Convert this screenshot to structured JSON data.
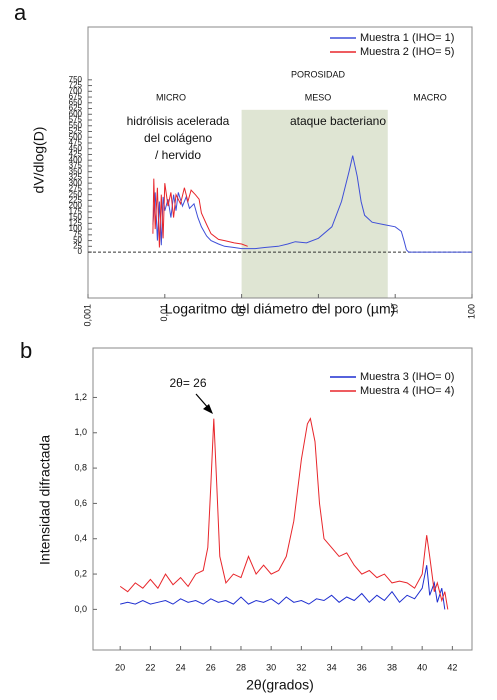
{
  "chart_data": [
    {
      "type": "line",
      "panel_label": "a",
      "xlog": true,
      "xlabel": "Logaritmo del diámetro del poro (µm)",
      "ylabel": "dV/dlog(D)",
      "xlim": [
        0.001,
        100
      ],
      "ylim": [
        -200,
        980
      ],
      "xticks": [
        {
          "value": 0.001,
          "label": "0,001"
        },
        {
          "value": 0.01,
          "label": "0,01"
        },
        {
          "value": 0.1,
          "label": "0,1"
        },
        1,
        10,
        100
      ],
      "yticks": [
        0,
        25,
        50,
        75,
        100,
        125,
        150,
        175,
        200,
        225,
        250,
        275,
        300,
        325,
        350,
        375,
        400,
        425,
        450,
        475,
        500,
        525,
        550,
        575,
        600,
        625,
        650,
        675,
        700,
        725,
        750
      ],
      "highlight_range": [
        0.1,
        8
      ],
      "highlight_color": "#dfe5d3",
      "annotations": [
        "POROSIDAD",
        "MICRO",
        "MESO",
        "MACRO",
        "hidrólisis acelerada",
        "del colágeno",
        "/ hervido",
        "ataque bacteriano"
      ],
      "series": [
        {
          "name": "Muestra 1 (IHO= 1)",
          "color": "#3f4fd8",
          "x": [
            0.007,
            0.0075,
            0.008,
            0.0085,
            0.009,
            0.0095,
            0.01,
            0.011,
            0.012,
            0.013,
            0.014,
            0.015,
            0.017,
            0.019,
            0.021,
            0.024,
            0.027,
            0.03,
            0.035,
            0.04,
            0.05,
            0.06,
            0.08,
            0.1,
            0.15,
            0.2,
            0.3,
            0.4,
            0.5,
            0.7,
            1,
            1.5,
            2,
            2.5,
            2.8,
            3.2,
            3.6,
            4,
            5,
            7,
            10,
            12,
            13,
            14,
            15,
            20,
            50,
            100
          ],
          "values": [
            120,
            260,
            50,
            220,
            30,
            240,
            180,
            230,
            150,
            250,
            180,
            260,
            200,
            240,
            190,
            210,
            150,
            110,
            70,
            50,
            35,
            25,
            20,
            15,
            15,
            20,
            25,
            35,
            45,
            40,
            60,
            110,
            220,
            350,
            420,
            330,
            220,
            160,
            130,
            120,
            110,
            90,
            50,
            10,
            0,
            0,
            0,
            0
          ]
        },
        {
          "name": "Muestra 2 (IHO= 5)",
          "color": "#e8262b",
          "x": [
            0.007,
            0.0072,
            0.0075,
            0.008,
            0.0085,
            0.009,
            0.0095,
            0.01,
            0.011,
            0.012,
            0.013,
            0.014,
            0.016,
            0.018,
            0.02,
            0.022,
            0.025,
            0.028,
            0.03,
            0.035,
            0.04,
            0.05,
            0.06,
            0.08,
            0.1,
            0.12
          ],
          "values": [
            80,
            320,
            100,
            280,
            20,
            250,
            60,
            300,
            200,
            260,
            150,
            250,
            210,
            280,
            220,
            270,
            250,
            230,
            170,
            120,
            80,
            55,
            50,
            40,
            35,
            25
          ]
        }
      ]
    },
    {
      "type": "line",
      "panel_label": "b",
      "xlog": false,
      "xlabel": "2θ(grados)",
      "ylabel": "Intensidad difractada",
      "xlim": [
        18.2,
        43.3
      ],
      "ylim": [
        -0.23,
        1.48
      ],
      "xticks": [
        20,
        22,
        24,
        26,
        28,
        30,
        32,
        34,
        36,
        38,
        40,
        42
      ],
      "yticks": [
        {
          "value": 0,
          "label": "0,0"
        },
        {
          "value": 0.2,
          "label": "0,2"
        },
        {
          "value": 0.4,
          "label": "0,4"
        },
        {
          "value": 0.6,
          "label": "0,6"
        },
        {
          "value": 0.8,
          "label": "0,8"
        },
        {
          "value": 1,
          "label": "1,0"
        },
        {
          "value": 1.2,
          "label": "1,2"
        }
      ],
      "annotations": [
        "2θ= 26"
      ],
      "series": [
        {
          "name": "Muestra 3 (IHO= 0)",
          "color": "#1f2fd0",
          "x": [
            20,
            20.5,
            21,
            21.5,
            22,
            22.5,
            23,
            23.5,
            24,
            24.5,
            25,
            25.5,
            26,
            26.5,
            27,
            27.5,
            28,
            28.5,
            29,
            29.5,
            30,
            30.5,
            31,
            31.5,
            32,
            32.5,
            33,
            33.5,
            34,
            34.5,
            35,
            35.5,
            36,
            36.5,
            37,
            37.5,
            38,
            38.5,
            39,
            39.5,
            40,
            40.3,
            40.5,
            40.8,
            41,
            41.3,
            41.5
          ],
          "values": [
            0.03,
            0.04,
            0.03,
            0.05,
            0.03,
            0.04,
            0.05,
            0.03,
            0.06,
            0.04,
            0.05,
            0.03,
            0.06,
            0.04,
            0.05,
            0.03,
            0.07,
            0.03,
            0.05,
            0.04,
            0.06,
            0.03,
            0.07,
            0.04,
            0.05,
            0.03,
            0.06,
            0.05,
            0.08,
            0.04,
            0.07,
            0.05,
            0.09,
            0.04,
            0.08,
            0.05,
            0.1,
            0.04,
            0.08,
            0.06,
            0.12,
            0.25,
            0.08,
            0.15,
            0.04,
            0.12,
            0.0
          ]
        },
        {
          "name": "Muestra 4 (IHO= 4)",
          "color": "#e8262b",
          "x": [
            20,
            20.5,
            21,
            21.5,
            22,
            22.5,
            23,
            23.5,
            24,
            24.5,
            25,
            25.5,
            25.8,
            26,
            26.2,
            26.4,
            26.6,
            27,
            27.5,
            28,
            28.5,
            29,
            29.5,
            30,
            30.5,
            31,
            31.5,
            32,
            32.4,
            32.6,
            32.9,
            33.2,
            33.5,
            34,
            34.5,
            35,
            35.5,
            36,
            36.5,
            37,
            37.5,
            38,
            38.5,
            39,
            39.5,
            40,
            40.3,
            40.5,
            40.8,
            41,
            41.3,
            41.5,
            41.7
          ],
          "values": [
            0.13,
            0.1,
            0.15,
            0.12,
            0.17,
            0.12,
            0.2,
            0.14,
            0.18,
            0.13,
            0.2,
            0.22,
            0.35,
            0.7,
            1.08,
            0.7,
            0.3,
            0.15,
            0.2,
            0.18,
            0.3,
            0.2,
            0.25,
            0.2,
            0.22,
            0.3,
            0.5,
            0.85,
            1.05,
            1.08,
            0.95,
            0.6,
            0.4,
            0.35,
            0.3,
            0.32,
            0.25,
            0.2,
            0.22,
            0.18,
            0.2,
            0.15,
            0.16,
            0.15,
            0.12,
            0.2,
            0.42,
            0.3,
            0.1,
            0.15,
            0.05,
            0.1,
            0.0
          ]
        }
      ]
    }
  ]
}
